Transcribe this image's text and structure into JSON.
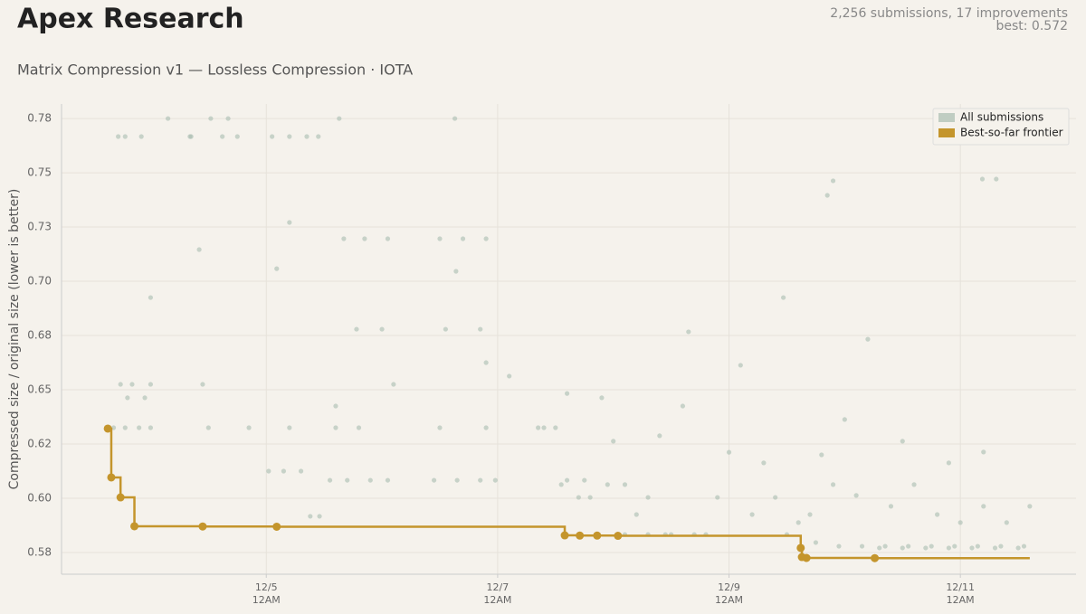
{
  "header": {
    "title": "Apex Research",
    "stats": "2,256 submissions, 17 improvements",
    "best": "best: 0.572"
  },
  "chart_data": {
    "type": "scatter",
    "title": "Matrix Compression v1 — Lossless Compression · IOTA",
    "ylabel": "Compressed size / original size  (lower is better)",
    "xlim": [
      3.23,
      12.0
    ],
    "ylim": [
      0.565,
      0.7817
    ],
    "xticks": [
      {
        "value": 5,
        "label": [
          "12/5",
          "12AM"
        ]
      },
      {
        "value": 7,
        "label": [
          "12/7",
          "12AM"
        ]
      },
      {
        "value": 9,
        "label": [
          "12/9",
          "12AM"
        ]
      },
      {
        "value": 11,
        "label": [
          "12/11",
          "12AM"
        ]
      }
    ],
    "yticks": [
      {
        "value": 0.575,
        "label": "0.58"
      },
      {
        "value": 0.6,
        "label": "0.60"
      },
      {
        "value": 0.625,
        "label": "0.62"
      },
      {
        "value": 0.65,
        "label": "0.65"
      },
      {
        "value": 0.675,
        "label": "0.68"
      },
      {
        "value": 0.7,
        "label": "0.70"
      },
      {
        "value": 0.725,
        "label": "0.73"
      },
      {
        "value": 0.75,
        "label": "0.75"
      },
      {
        "value": 0.775,
        "label": "0.78"
      }
    ],
    "grid": true,
    "legend": "upper right",
    "series": [
      {
        "name": "All submissions",
        "color": "#a9bdb0",
        "x": [
          3.72,
          3.78,
          3.92,
          4.35,
          4.62,
          4.75,
          5.05,
          5.2,
          5.35,
          5.45,
          4.15,
          4.34,
          4.52,
          4.67,
          5.63,
          6.63,
          5.67,
          5.85,
          6.05,
          6.5,
          6.7,
          6.9,
          5.78,
          6.0,
          6.55,
          6.85,
          5.02,
          5.15,
          5.3,
          5.55,
          5.7,
          5.9,
          6.05,
          6.45,
          6.65,
          6.85,
          6.98,
          3.68,
          3.78,
          3.9,
          4.0,
          4.5,
          4.85,
          5.2,
          5.6,
          5.8,
          6.5,
          6.9,
          7.4,
          3.74,
          3.84,
          4.0,
          4.45,
          3.8,
          3.95,
          7.6,
          7.75,
          7.95,
          8.1,
          7.7,
          8.3,
          8.9,
          9.4,
          8.1,
          8.3,
          8.5,
          8.7,
          10.3,
          10.5,
          10.7,
          10.9,
          11.1,
          11.3,
          11.5,
          9.7,
          9.9,
          10.1,
          10.4,
          10.6,
          10.8,
          11.0,
          11.2,
          11.4,
          11.6,
          11.19,
          11.31,
          9.9,
          9.85,
          8.65,
          9.1,
          9.47,
          10.2,
          8.4,
          8.6,
          9.0,
          9.3,
          9.8,
          10.0,
          10.5,
          10.9,
          11.2,
          4.0,
          4.42,
          5.09,
          5.2,
          6.64,
          6.1,
          5.6,
          6.9,
          7.1,
          7.35,
          7.5,
          7.6,
          7.9,
          8.0,
          5.38,
          5.46,
          9.6,
          9.75,
          9.95,
          10.15,
          10.35,
          10.55,
          10.75,
          10.95,
          11.15,
          11.35,
          11.55,
          7.55,
          7.8,
          8.2,
          8.45,
          8.8,
          9.2,
          9.5
        ],
        "values": [
          0.7667,
          0.7667,
          0.7667,
          0.7667,
          0.7667,
          0.7667,
          0.7667,
          0.7667,
          0.7667,
          0.7667,
          0.775,
          0.7667,
          0.775,
          0.775,
          0.775,
          0.775,
          0.7196,
          0.7196,
          0.7196,
          0.7196,
          0.7196,
          0.7196,
          0.6779,
          0.6779,
          0.6779,
          0.6779,
          0.6125,
          0.6125,
          0.6125,
          0.6083,
          0.6083,
          0.6083,
          0.6083,
          0.6083,
          0.6083,
          0.6083,
          0.6083,
          0.6325,
          0.6325,
          0.6325,
          0.6325,
          0.6325,
          0.6325,
          0.6325,
          0.6325,
          0.6325,
          0.6325,
          0.6325,
          0.6325,
          0.6525,
          0.6525,
          0.6525,
          0.6525,
          0.6463,
          0.6463,
          0.6083,
          0.6083,
          0.6063,
          0.6063,
          0.6004,
          0.6004,
          0.6004,
          0.6004,
          0.5833,
          0.5833,
          0.5833,
          0.5833,
          0.5771,
          0.5771,
          0.5771,
          0.5771,
          0.5771,
          0.5771,
          0.5771,
          0.5925,
          0.6063,
          0.6013,
          0.5963,
          0.6063,
          0.5925,
          0.5888,
          0.5963,
          0.5888,
          0.5963,
          0.7471,
          0.7471,
          0.7463,
          0.7396,
          0.6767,
          0.6613,
          0.6925,
          0.6733,
          0.6288,
          0.6425,
          0.6212,
          0.6163,
          0.62,
          0.6363,
          0.6263,
          0.6163,
          0.6213,
          0.6925,
          0.7146,
          0.7058,
          0.7271,
          0.7046,
          0.6525,
          0.6425,
          0.6625,
          0.6563,
          0.6325,
          0.6325,
          0.6483,
          0.6463,
          0.6263,
          0.5917,
          0.5917,
          0.5888,
          0.5796,
          0.5779,
          0.5779,
          0.5779,
          0.5779,
          0.5779,
          0.5779,
          0.5779,
          0.5779,
          0.5779,
          0.6063,
          0.6004,
          0.5925,
          0.5833,
          0.5833,
          0.5925,
          0.5833
        ]
      },
      {
        "name": "Best-so-far frontier",
        "color": "#c4952c",
        "step": true,
        "x": [
          3.63,
          3.66,
          3.74,
          3.86,
          4.45,
          5.09,
          7.58,
          7.71,
          7.86,
          8.04,
          9.62,
          9.63,
          9.67,
          10.26
        ],
        "values": [
          0.6321,
          0.6096,
          0.6004,
          0.5871,
          0.587,
          0.5869,
          0.5829,
          0.5828,
          0.5828,
          0.5827,
          0.5771,
          0.5729,
          0.5725,
          0.5724
        ]
      }
    ]
  }
}
